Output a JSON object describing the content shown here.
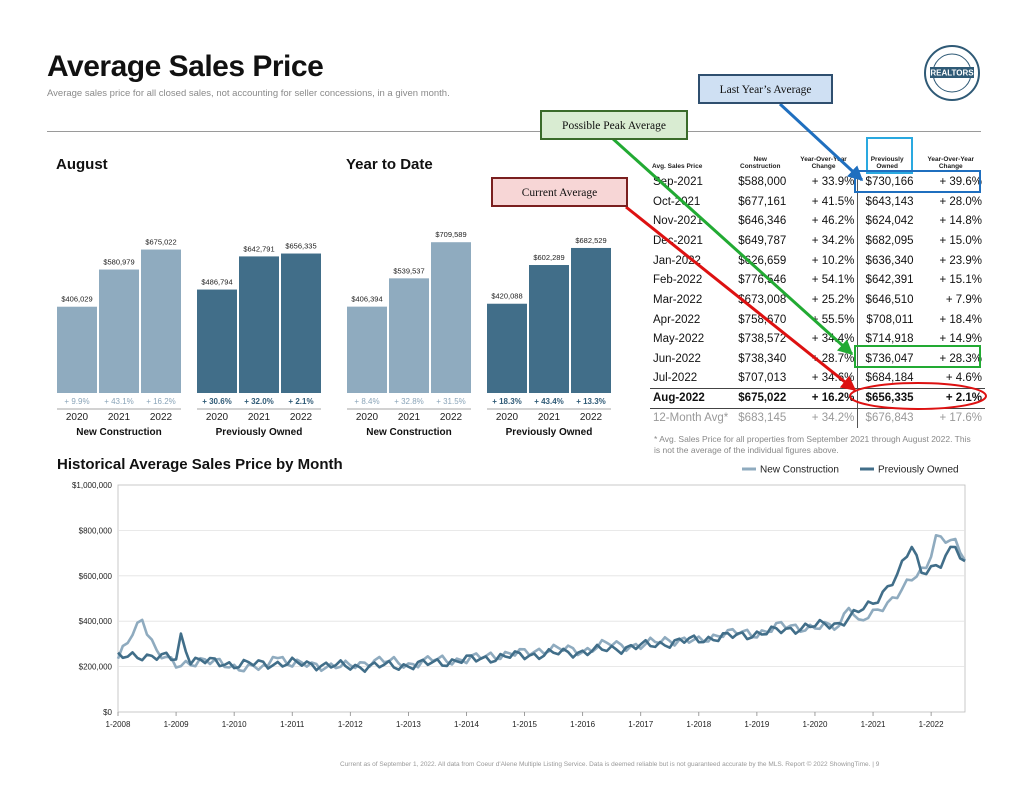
{
  "header": {
    "title": "Average Sales Price",
    "subtitle": "Average sales price for all closed sales, not accounting for seller concessions, in a given month."
  },
  "logo": {
    "text": "REALTORS",
    "ring_text": "COEUR D'ALENE ASSOCIATION"
  },
  "callouts": {
    "last_year": "Last Year’s Average",
    "peak": "Possible Peak Average",
    "current": "Current Average"
  },
  "table": {
    "headers": [
      "Avg. Sales Price",
      "New Construction",
      "Year-Over-Year Change",
      "Previously Owned",
      "Year-Over-Year Change"
    ],
    "rows": [
      [
        "Sep-2021",
        "$588,000",
        "+ 33.9%",
        "$730,166",
        "+ 39.6%"
      ],
      [
        "Oct-2021",
        "$677,161",
        "+ 41.5%",
        "$643,143",
        "+ 28.0%"
      ],
      [
        "Nov-2021",
        "$646,346",
        "+ 46.2%",
        "$624,042",
        "+ 14.8%"
      ],
      [
        "Dec-2021",
        "$649,787",
        "+ 34.2%",
        "$682,095",
        "+ 15.0%"
      ],
      [
        "Jan-2022",
        "$626,659",
        "+ 10.2%",
        "$636,340",
        "+ 23.9%"
      ],
      [
        "Feb-2022",
        "$776,546",
        "+ 54.1%",
        "$642,391",
        "+ 15.1%"
      ],
      [
        "Mar-2022",
        "$673,008",
        "+ 25.2%",
        "$646,510",
        "+ 7.9%"
      ],
      [
        "Apr-2022",
        "$758,670",
        "+ 55.5%",
        "$708,011",
        "+ 18.4%"
      ],
      [
        "May-2022",
        "$738,572",
        "+ 34.4%",
        "$714,918",
        "+ 14.9%"
      ],
      [
        "Jun-2022",
        "$738,340",
        "+ 28.7%",
        "$736,047",
        "+ 28.3%"
      ],
      [
        "Jul-2022",
        "$707,013",
        "+ 34.6%",
        "$684,184",
        "+ 4.6%"
      ],
      [
        "Aug-2022",
        "$675,022",
        "+ 16.2%",
        "$656,335",
        "+ 2.1%"
      ],
      [
        "12-Month Avg*",
        "$683,145",
        "+ 34.2%",
        "$676,843",
        "+ 17.6%"
      ]
    ],
    "footnote": "* Avg. Sales Price for all properties from September 2021 through August 2022. This is not the average of the individual figures above."
  },
  "footer": "Current as of September 1, 2022. All data from Coeur d'Alene Multiple Listing Service. Data is deemed reliable but is not guaranteed accurate by the MLS. Report © 2022 ShowingTime. | 9",
  "colors": {
    "new_construction": "#8fabbf",
    "previously_owned": "#416e89",
    "change_text": "#8aa4b8",
    "callout_blue": "#1f6fbf",
    "callout_green": "#22aa33",
    "callout_red": "#dd1111"
  },
  "chart_data": [
    {
      "type": "bar",
      "title": "August",
      "groups": [
        {
          "name": "New Construction",
          "categories": [
            "2020",
            "2021",
            "2022"
          ],
          "values": [
            406029,
            580979,
            675022
          ],
          "value_labels": [
            "$406,029",
            "$580,979",
            "$675,022"
          ],
          "changes": [
            "+ 9.9%",
            "+ 43.1%",
            "+ 16.2%"
          ]
        },
        {
          "name": "Previously Owned",
          "categories": [
            "2020",
            "2021",
            "2022"
          ],
          "values": [
            486794,
            642791,
            656335
          ],
          "value_labels": [
            "$486,794",
            "$642,791",
            "$656,335"
          ],
          "changes": [
            "+ 30.6%",
            "+ 32.0%",
            "+ 2.1%"
          ]
        }
      ]
    },
    {
      "type": "bar",
      "title": "Year to Date",
      "groups": [
        {
          "name": "New Construction",
          "categories": [
            "2020",
            "2021",
            "2022"
          ],
          "values": [
            406394,
            539537,
            709589
          ],
          "value_labels": [
            "$406,394",
            "$539,537",
            "$709,589"
          ],
          "changes": [
            "+ 8.4%",
            "+ 32.8%",
            "+ 31.5%"
          ]
        },
        {
          "name": "Previously Owned",
          "categories": [
            "2020",
            "2021",
            "2022"
          ],
          "values": [
            420088,
            602289,
            682529
          ],
          "value_labels": [
            "$420,088",
            "$602,289",
            "$682,529"
          ],
          "changes": [
            "+ 18.3%",
            "+ 43.4%",
            "+ 13.3%"
          ]
        }
      ]
    },
    {
      "type": "line",
      "title": "Historical Average Sales Price by Month",
      "ylim": [
        0,
        1000000
      ],
      "y_ticks": [
        "$0",
        "$200,000",
        "$400,000",
        "$600,000",
        "$800,000",
        "$1,000,000"
      ],
      "x_ticks": [
        "1-2008",
        "1-2009",
        "1-2010",
        "1-2011",
        "1-2012",
        "1-2013",
        "1-2014",
        "1-2015",
        "1-2016",
        "1-2017",
        "1-2018",
        "1-2019",
        "1-2020",
        "1-2021",
        "1-2022"
      ],
      "legend_position": "top-right",
      "series": [
        {
          "name": "New Construction",
          "x_start": "2008-01",
          "x_end": "2022-08",
          "anchors": [
            [
              "2008-01",
              235000
            ],
            [
              "2008-06",
              410000
            ],
            [
              "2008-09",
              270000
            ],
            [
              "2009-01",
              200000
            ],
            [
              "2009-06",
              230000
            ],
            [
              "2010-01",
              200000
            ],
            [
              "2010-08",
              190000
            ],
            [
              "2010-09",
              260000
            ],
            [
              "2011-01",
              210000
            ],
            [
              "2012-01",
              200000
            ],
            [
              "2012-06",
              230000
            ],
            [
              "2013-01",
              210000
            ],
            [
              "2013-06",
              230000
            ],
            [
              "2014-01",
              230000
            ],
            [
              "2014-06",
              250000
            ],
            [
              "2015-01",
              260000
            ],
            [
              "2015-06",
              280000
            ],
            [
              "2016-01",
              270000
            ],
            [
              "2016-06",
              300000
            ],
            [
              "2017-01",
              290000
            ],
            [
              "2017-06",
              320000
            ],
            [
              "2018-01",
              310000
            ],
            [
              "2018-06",
              350000
            ],
            [
              "2019-01",
              345000
            ],
            [
              "2019-06",
              380000
            ],
            [
              "2020-01",
              370000
            ],
            [
              "2020-06",
              380000
            ],
            [
              "2020-08",
              480000
            ],
            [
              "2020-10",
              390000
            ],
            [
              "2021-01",
              430000
            ],
            [
              "2021-06",
              520000
            ],
            [
              "2021-12",
              640000
            ],
            [
              "2022-02",
              776546
            ],
            [
              "2022-04",
              758670
            ],
            [
              "2022-06",
              738340
            ],
            [
              "2022-08",
              675022
            ]
          ]
        },
        {
          "name": "Previously Owned",
          "x_start": "2008-01",
          "x_end": "2022-08",
          "anchors": [
            [
              "2008-01",
              240000
            ],
            [
              "2008-06",
              250000
            ],
            [
              "2009-01",
              235000
            ],
            [
              "2009-02",
              335000
            ],
            [
              "2009-04",
              230000
            ],
            [
              "2010-01",
              210000
            ],
            [
              "2011-01",
              215000
            ],
            [
              "2012-01",
              200000
            ],
            [
              "2013-01",
              205000
            ],
            [
              "2014-01",
              230000
            ],
            [
              "2015-01",
              250000
            ],
            [
              "2016-01",
              265000
            ],
            [
              "2017-01",
              290000
            ],
            [
              "2018-01",
              320000
            ],
            [
              "2019-01",
              345000
            ],
            [
              "2020-01",
              380000
            ],
            [
              "2020-06",
              390000
            ],
            [
              "2021-01",
              480000
            ],
            [
              "2021-06",
              600000
            ],
            [
              "2021-09",
              730166
            ],
            [
              "2021-11",
              624042
            ],
            [
              "2022-01",
              636340
            ],
            [
              "2022-03",
              646510
            ],
            [
              "2022-06",
              736047
            ],
            [
              "2022-07",
              684184
            ],
            [
              "2022-08",
              656335
            ]
          ]
        }
      ]
    }
  ]
}
